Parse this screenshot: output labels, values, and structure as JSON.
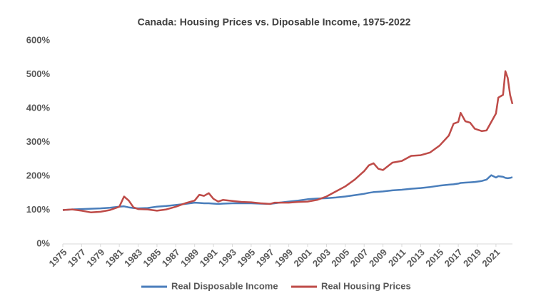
{
  "chart_data": {
    "type": "line",
    "title": "Canada: Housing Prices vs. Diposable Income, 1975-2022",
    "x": [
      1975,
      1976,
      1977,
      1978,
      1979,
      1980,
      1981,
      1981.5,
      1982,
      1982.5,
      1983,
      1984,
      1985,
      1986,
      1987,
      1988,
      1989,
      1989.5,
      1990,
      1990.5,
      1991,
      1991.5,
      1992,
      1993,
      1994,
      1995,
      1996,
      1997,
      1997.5,
      1998,
      1999,
      2000,
      2001,
      2002,
      2003,
      2004,
      2005,
      2006,
      2007,
      2007.5,
      2008,
      2008.5,
      2009,
      2010,
      2011,
      2012,
      2013,
      2014,
      2015,
      2016,
      2016.5,
      2017,
      2017.25,
      2017.75,
      2018.25,
      2018.75,
      2019.5,
      2020,
      2020.5,
      2021,
      2021.25,
      2021.75,
      2022,
      2022.25,
      2022.5,
      2022.75
    ],
    "series": [
      {
        "name": "Real Disposable Income",
        "color": "#4a7ebb",
        "values": [
          100,
          102,
          103,
          104,
          105,
          107,
          110,
          111,
          108,
          106,
          105,
          106,
          110,
          112,
          115,
          118,
          122,
          121,
          120,
          120,
          119,
          118,
          119,
          120,
          120,
          120,
          119,
          118,
          120,
          122,
          125,
          128,
          132,
          134,
          135,
          137,
          140,
          144,
          148,
          151,
          153,
          154,
          155,
          158,
          160,
          163,
          165,
          168,
          172,
          175,
          176,
          178,
          180,
          181,
          182,
          183,
          186,
          190,
          203,
          196,
          200,
          198,
          195,
          194,
          195,
          197
        ]
      },
      {
        "name": "Real Housing Prices",
        "color": "#be4b48",
        "values": [
          100,
          102,
          98,
          93,
          95,
          100,
          110,
          140,
          128,
          108,
          103,
          102,
          98,
          102,
          110,
          120,
          128,
          145,
          142,
          150,
          133,
          125,
          130,
          127,
          124,
          123,
          120,
          118,
          122,
          122,
          122,
          124,
          125,
          130,
          140,
          155,
          170,
          190,
          215,
          232,
          238,
          222,
          218,
          240,
          245,
          260,
          262,
          270,
          290,
          320,
          355,
          360,
          387,
          362,
          358,
          340,
          333,
          335,
          360,
          385,
          432,
          440,
          510,
          490,
          440,
          413
        ]
      }
    ],
    "xlim": [
      1975,
      2022.75
    ],
    "xticks": [
      1975,
      1977,
      1979,
      1981,
      1983,
      1985,
      1987,
      1989,
      1991,
      1993,
      1995,
      1997,
      1999,
      2001,
      2003,
      2005,
      2007,
      2009,
      2011,
      2013,
      2015,
      2017,
      2019,
      2021
    ],
    "ylim": [
      0,
      600
    ],
    "yticks": [
      {
        "value": 0,
        "label": "0%"
      },
      {
        "value": 100,
        "label": "100%"
      },
      {
        "value": 200,
        "label": "200%"
      },
      {
        "value": 300,
        "label": "300%"
      },
      {
        "value": 400,
        "label": "400%"
      },
      {
        "value": 500,
        "label": "500%"
      },
      {
        "value": 600,
        "label": "600%"
      }
    ],
    "grid": false,
    "legend": "bottom"
  }
}
